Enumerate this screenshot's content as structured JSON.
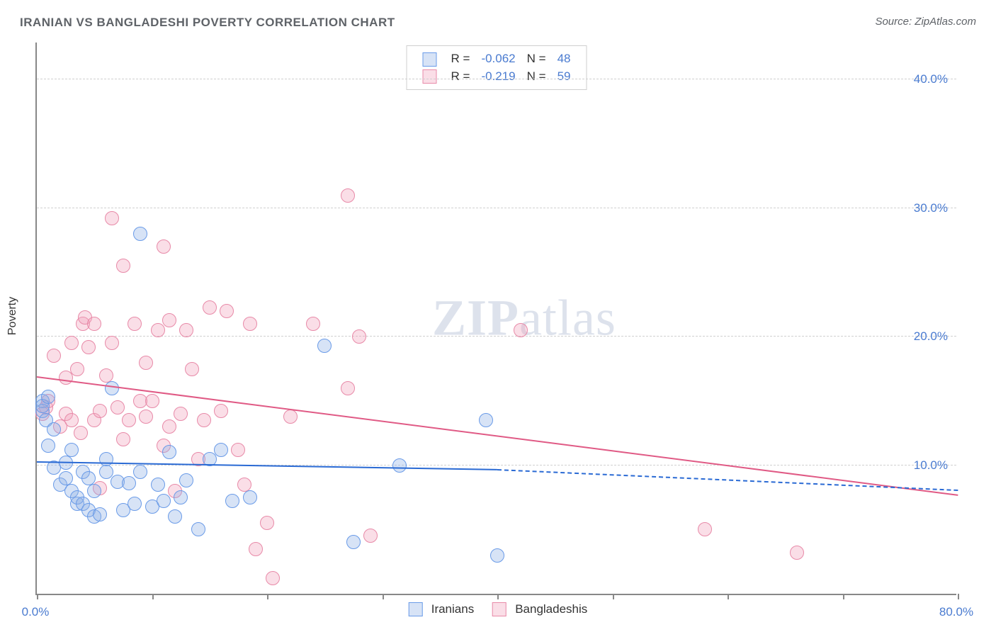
{
  "title": "IRANIAN VS BANGLADESHI POVERTY CORRELATION CHART",
  "source": "Source: ZipAtlas.com",
  "watermark_bold": "ZIP",
  "watermark_light": "atlas",
  "y_axis_label": "Poverty",
  "chart": {
    "type": "scatter",
    "xlim": [
      0,
      80
    ],
    "ylim": [
      0,
      43
    ],
    "x_ticks": [
      0,
      10,
      20,
      30,
      40,
      50,
      60,
      70,
      80
    ],
    "x_tick_labels": {
      "0": "0.0%",
      "80": "80.0%"
    },
    "y_gridlines": [
      10,
      20,
      30,
      40
    ],
    "y_tick_labels": {
      "10": "10.0%",
      "20": "20.0%",
      "30": "30.0%",
      "40": "40.0%"
    },
    "background_color": "#ffffff",
    "grid_color": "#d0d0d0",
    "axis_color": "#888888",
    "label_color": "#4a7bd0",
    "marker_radius": 10,
    "marker_border_width": 1.5,
    "marker_fill_opacity": 0.35
  },
  "series": {
    "iranians": {
      "label": "Iranians",
      "color_stroke": "#6a9be8",
      "color_fill": "rgba(140,175,230,0.35)",
      "r_label": "R =",
      "r_value": "-0.062",
      "n_label": "N =",
      "n_value": "48",
      "trend": {
        "x1": 0,
        "y1": 10.2,
        "x2": 40,
        "y2": 9.6,
        "x2_dashed": 80,
        "y2_dashed": 8.0,
        "color": "#2a6ad4"
      },
      "points": [
        [
          0.5,
          15
        ],
        [
          0.5,
          14.2
        ],
        [
          0.5,
          14.6
        ],
        [
          0.8,
          13.5
        ],
        [
          1,
          11.5
        ],
        [
          1,
          15.3
        ],
        [
          1.5,
          9.8
        ],
        [
          1.5,
          12.8
        ],
        [
          2.0,
          8.5
        ],
        [
          2.5,
          10.2
        ],
        [
          2.5,
          9.0
        ],
        [
          3.0,
          11.2
        ],
        [
          3.0,
          8.0
        ],
        [
          3.5,
          7.0
        ],
        [
          3.5,
          7.5
        ],
        [
          4.0,
          9.5
        ],
        [
          4.0,
          7.0
        ],
        [
          4.5,
          9.0
        ],
        [
          4.5,
          6.5
        ],
        [
          5.0,
          6.0
        ],
        [
          5.0,
          8.0
        ],
        [
          5.5,
          6.2
        ],
        [
          6.0,
          9.5
        ],
        [
          6.0,
          10.5
        ],
        [
          6.5,
          16.0
        ],
        [
          7.0,
          8.7
        ],
        [
          7.5,
          6.5
        ],
        [
          8.0,
          8.6
        ],
        [
          8.5,
          7.0
        ],
        [
          9.0,
          28.0
        ],
        [
          9.0,
          9.5
        ],
        [
          10.0,
          6.8
        ],
        [
          10.5,
          8.5
        ],
        [
          11.0,
          7.2
        ],
        [
          11.5,
          11.0
        ],
        [
          12.0,
          6.0
        ],
        [
          12.5,
          7.5
        ],
        [
          13.0,
          8.8
        ],
        [
          14.0,
          5.0
        ],
        [
          15.0,
          10.5
        ],
        [
          16.0,
          11.2
        ],
        [
          17.0,
          7.2
        ],
        [
          18.5,
          7.5
        ],
        [
          25.0,
          19.3
        ],
        [
          27.5,
          4.0
        ],
        [
          31.5,
          10.0
        ],
        [
          39.0,
          13.5
        ],
        [
          40.0,
          3.0
        ]
      ]
    },
    "bangladeshis": {
      "label": "Bangladeshis",
      "color_stroke": "#e88aa8",
      "color_fill": "rgba(240,160,185,0.35)",
      "r_label": "R =",
      "r_value": "-0.219",
      "n_label": "N =",
      "n_value": "59",
      "trend": {
        "x1": 0,
        "y1": 16.8,
        "x2": 80,
        "y2": 7.6,
        "color": "#e05a85"
      },
      "points": [
        [
          0.5,
          14
        ],
        [
          0.8,
          14.5
        ],
        [
          1,
          15
        ],
        [
          1.5,
          18.5
        ],
        [
          2,
          13
        ],
        [
          2.5,
          14
        ],
        [
          2.5,
          16.8
        ],
        [
          3,
          13.5
        ],
        [
          3,
          19.5
        ],
        [
          3.5,
          17.5
        ],
        [
          3.8,
          12.5
        ],
        [
          4,
          21
        ],
        [
          4.2,
          21.5
        ],
        [
          4.5,
          19.2
        ],
        [
          5,
          13.5
        ],
        [
          5,
          21
        ],
        [
          5.5,
          14.2
        ],
        [
          5.5,
          8.2
        ],
        [
          6,
          17
        ],
        [
          6.5,
          19.5
        ],
        [
          6.5,
          29.2
        ],
        [
          7,
          14.5
        ],
        [
          7.5,
          12
        ],
        [
          7.5,
          25.5
        ],
        [
          8,
          13.5
        ],
        [
          8.5,
          21
        ],
        [
          9,
          15
        ],
        [
          9.5,
          13.8
        ],
        [
          9.5,
          18
        ],
        [
          10,
          15
        ],
        [
          10.5,
          20.5
        ],
        [
          11,
          27
        ],
        [
          11,
          11.5
        ],
        [
          11.5,
          21.3
        ],
        [
          11.5,
          13
        ],
        [
          12,
          8.0
        ],
        [
          12.5,
          14
        ],
        [
          13,
          20.5
        ],
        [
          13.5,
          17.5
        ],
        [
          14,
          10.5
        ],
        [
          14.5,
          13.5
        ],
        [
          15,
          22.3
        ],
        [
          16,
          14.2
        ],
        [
          16.5,
          22
        ],
        [
          17.5,
          11.2
        ],
        [
          18,
          8.5
        ],
        [
          18.5,
          21
        ],
        [
          19,
          3.5
        ],
        [
          20,
          5.5
        ],
        [
          20.5,
          1.2
        ],
        [
          22,
          13.8
        ],
        [
          24,
          21
        ],
        [
          27,
          16
        ],
        [
          27,
          31
        ],
        [
          28,
          20
        ],
        [
          29,
          4.5
        ],
        [
          42,
          20.5
        ],
        [
          58,
          5.0
        ],
        [
          66,
          3.2
        ]
      ]
    }
  },
  "legend_bottom": {
    "items": [
      "iranians",
      "bangladeshis"
    ]
  }
}
